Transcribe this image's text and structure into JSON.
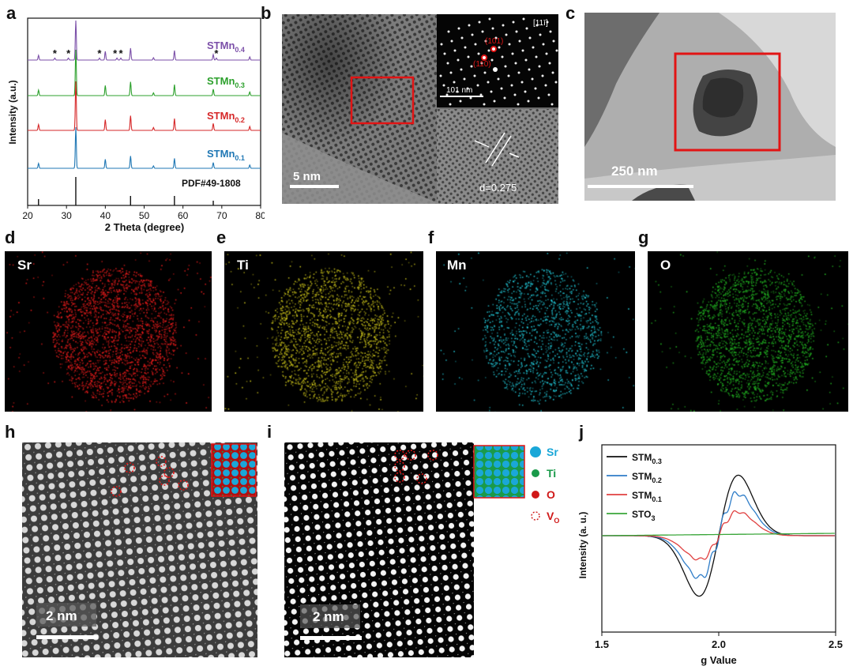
{
  "panel_labels": {
    "a": "a",
    "b": "b",
    "c": "c",
    "d": "d",
    "e": "e",
    "f": "f",
    "g": "g",
    "h": "h",
    "i": "i",
    "j": "j"
  },
  "xrd": {
    "ylabel": "Intensity (a.u.)",
    "xlabel": "2 Theta (degree)",
    "xticks": [
      "20",
      "30",
      "40",
      "50",
      "60",
      "70",
      "80"
    ],
    "samples": [
      {
        "base": "STMn",
        "sub": "0.4",
        "color": "#7b4fa8"
      },
      {
        "base": "STMn",
        "sub": "0.3",
        "color": "#2ca02c"
      },
      {
        "base": "STMn",
        "sub": "0.2",
        "color": "#d62728"
      },
      {
        "base": "STMn",
        "sub": "0.1",
        "color": "#1f77b4"
      }
    ],
    "reference": "PDF#49-1808",
    "impurity_marker": "*"
  },
  "hrtem": {
    "scale": "5 nm",
    "zone_axis": "[11ī]",
    "saed_scale": "101 nm",
    "spot1": "(101)",
    "spot2": "(110)",
    "d_spacing": "d=0.275"
  },
  "tem": {
    "scale": "250 nm"
  },
  "eds": {
    "d": {
      "element": "Sr",
      "color": "#e81c1c"
    },
    "e": {
      "element": "Ti",
      "color": "#c8c01a"
    },
    "f": {
      "element": "Mn",
      "color": "#22c8d8"
    },
    "g": {
      "element": "O",
      "color": "#22b322"
    }
  },
  "stem_h": {
    "scale": "2 nm"
  },
  "stem_i": {
    "scale": "2 nm"
  },
  "atom_legend": [
    {
      "label": "Sr",
      "color": "#1aa7d8"
    },
    {
      "label": "Ti",
      "color": "#1a9a4a"
    },
    {
      "label": "O",
      "color": "#d01818"
    },
    {
      "label": "V",
      "sub": "O",
      "color": "#d01818"
    }
  ],
  "chart_data": [
    {
      "type": "line",
      "panel": "a",
      "xlabel": "2 Theta (degree)",
      "ylabel": "Intensity (a.u.)",
      "xlim": [
        20,
        80
      ],
      "peaks_2theta": [
        22.8,
        32.4,
        40.0,
        46.5,
        52.4,
        57.8,
        67.8,
        77.2
      ],
      "reference_lines_2theta": [
        22.8,
        32.4,
        46.5,
        57.8,
        67.8
      ],
      "series": [
        {
          "name": "STMn0.4"
        },
        {
          "name": "STMn0.3"
        },
        {
          "name": "STMn0.2"
        },
        {
          "name": "STMn0.1"
        }
      ],
      "legend": "right"
    },
    {
      "type": "line",
      "panel": "j",
      "xlabel": "g Value",
      "ylabel": "Intensity (a. u.)",
      "xlim": [
        1.5,
        2.5
      ],
      "xticks": [
        "1.5",
        "2.0",
        "2.5"
      ],
      "series": [
        {
          "name": "STM0.3",
          "color": "#111111",
          "min_g": 1.9,
          "max_g": 2.08
        },
        {
          "name": "STM0.2",
          "color": "#2f7dc8",
          "min_g": 1.93,
          "max_g": 2.06
        },
        {
          "name": "STM0.1",
          "color": "#e04040",
          "min_g": 1.96,
          "max_g": 2.05
        },
        {
          "name": "STO3",
          "color": "#3aa63a"
        }
      ],
      "legend": "top-left"
    }
  ]
}
